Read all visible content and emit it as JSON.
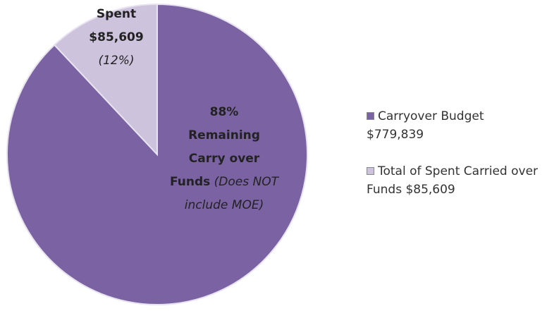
{
  "chart_data": {
    "type": "pie",
    "series": [
      {
        "name": "Carryover Budget $779,839",
        "color": "#7b63a3"
      },
      {
        "name": "Total of Spent Carried over Funds $85,609",
        "color": "#cdc3dc"
      }
    ],
    "values": [
      88,
      12
    ],
    "value_labels": [
      "88%",
      "(12%)"
    ],
    "slice_labels": [
      {
        "title": "Remaining Carry over Funds",
        "note": "(Does NOT include MOE)"
      },
      {
        "title": "Spent",
        "amount": "$85,609"
      }
    ]
  }
}
